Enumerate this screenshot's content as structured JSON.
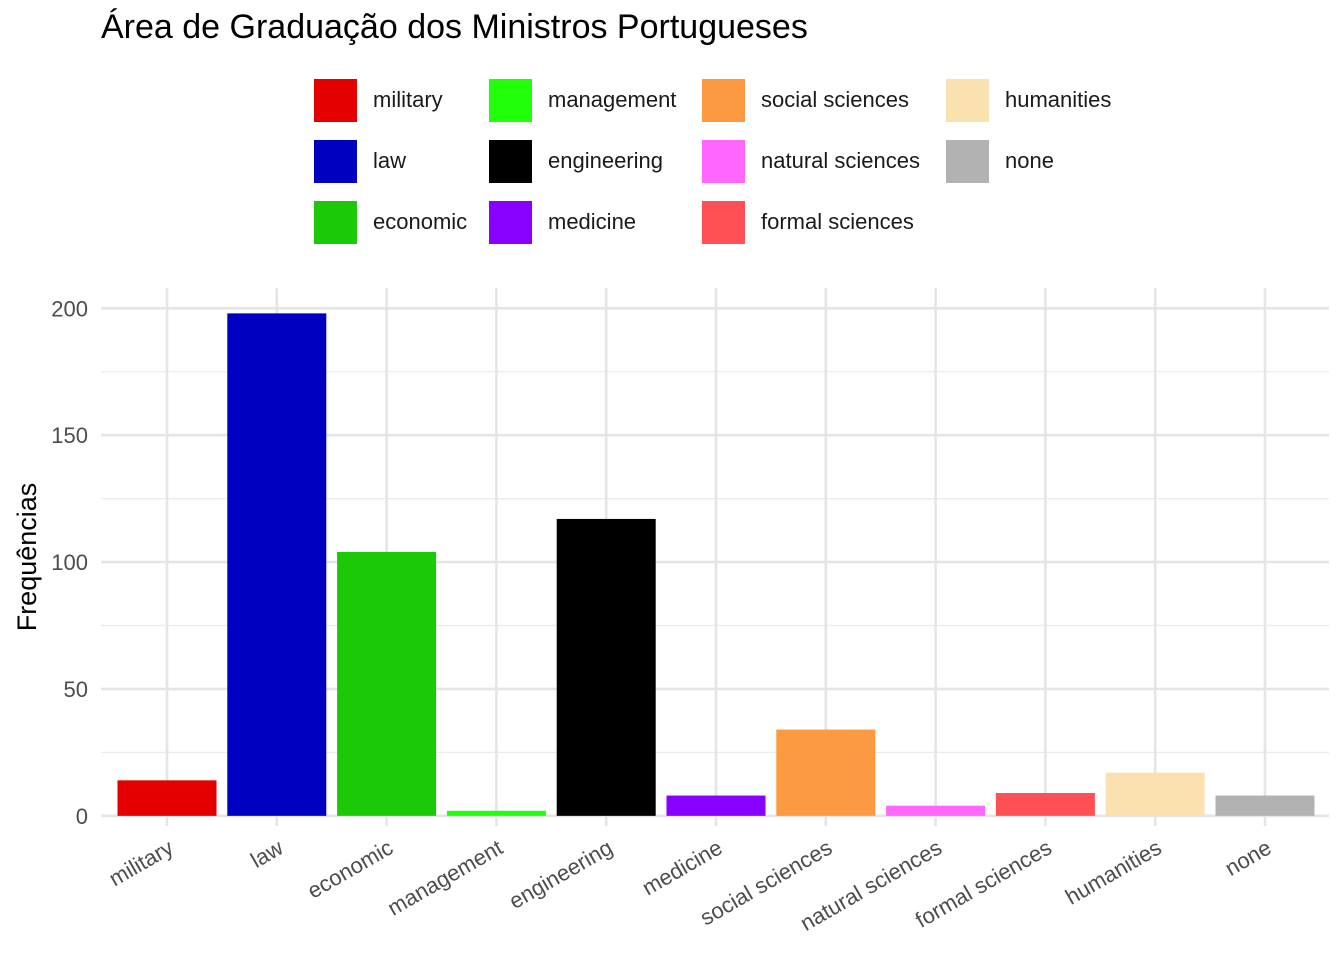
{
  "chart_data": {
    "type": "bar",
    "title": "Área de Graduação dos Ministros Portugueses",
    "xlabel": "",
    "ylabel": "Frequências",
    "ylim": [
      -4,
      208
    ],
    "yticks": [
      0,
      50,
      100,
      150,
      200
    ],
    "grid": true,
    "legend_position": "top",
    "categories": [
      "military",
      "law",
      "economic",
      "management",
      "engineering",
      "medicine",
      "social sciences",
      "natural sciences",
      "formal sciences",
      "humanities",
      "none"
    ],
    "values": [
      14,
      198,
      104,
      2,
      117,
      8,
      34,
      4,
      9,
      17,
      8
    ],
    "colors": [
      "#e50000",
      "#0000c2",
      "#1cc906",
      "#21ff0a",
      "#000000",
      "#8800ff",
      "#fd9941",
      "#fe66fd",
      "#fe5055",
      "#fae2b0",
      "#b2b2b2"
    ],
    "legend": [
      "military",
      "law",
      "economic",
      "management",
      "engineering",
      "medicine",
      "social sciences",
      "natural sciences",
      "formal sciences",
      "humanities",
      "none"
    ]
  }
}
